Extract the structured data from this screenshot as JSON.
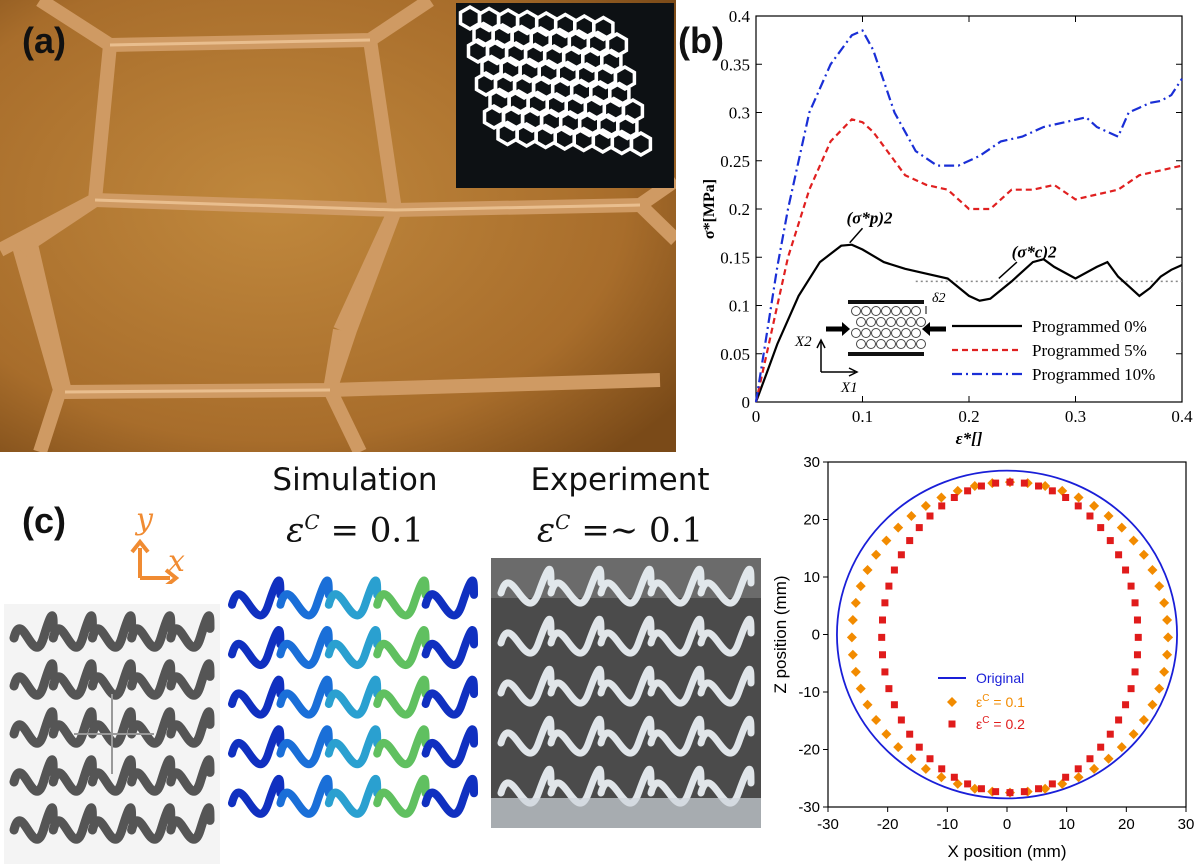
{
  "panel_a": {
    "label": "(a)",
    "colors": {
      "background": "#b57a33",
      "wall": "#d29a62",
      "inset_bg": "#0d1114"
    }
  },
  "panel_b": {
    "label": "(b)",
    "annotations": {
      "peak_label": "(σ*p)2",
      "plateau_label": "(σ*c)2",
      "delta": "δ2",
      "x2": "X2",
      "x1": "X1"
    }
  },
  "panel_c": {
    "label": "(c)",
    "axis_y": "y",
    "axis_x": "x",
    "sim_title": "Simulation",
    "exp_title": "Experiment",
    "sim_eq_sym": "ε",
    "sim_eq_sup": "C",
    "sim_eq_rest": " = 0.1",
    "exp_eq_sym": "ε",
    "exp_eq_sup": "C",
    "exp_eq_rest": " =~ 0.1"
  },
  "chart_data": [
    {
      "type": "line",
      "xlabel": "ε*[]",
      "ylabel": "σ*[MPa]",
      "xlim": [
        0,
        0.4
      ],
      "ylim": [
        0,
        0.4
      ],
      "xticks": [
        "0",
        "0.1",
        "0.2",
        "0.3",
        "0.4"
      ],
      "yticks": [
        "0",
        "0.05",
        "0.1",
        "0.15",
        "0.2",
        "0.25",
        "0.3",
        "0.35",
        "0.4"
      ],
      "grid": false,
      "legend": "bottom-right",
      "reference_line_y": 0.125,
      "series": [
        {
          "name": "Programmed 0%",
          "color": "#000000",
          "style": "solid",
          "x": [
            0,
            0.01,
            0.02,
            0.04,
            0.06,
            0.08,
            0.09,
            0.1,
            0.12,
            0.14,
            0.16,
            0.18,
            0.2,
            0.21,
            0.22,
            0.24,
            0.26,
            0.27,
            0.28,
            0.3,
            0.32,
            0.33,
            0.34,
            0.35,
            0.36,
            0.37,
            0.38,
            0.39,
            0.4
          ],
          "y": [
            0,
            0.03,
            0.06,
            0.11,
            0.145,
            0.162,
            0.163,
            0.158,
            0.145,
            0.138,
            0.133,
            0.128,
            0.11,
            0.105,
            0.107,
            0.125,
            0.145,
            0.148,
            0.14,
            0.128,
            0.14,
            0.145,
            0.13,
            0.12,
            0.11,
            0.118,
            0.13,
            0.137,
            0.142
          ]
        },
        {
          "name": "Programmed 5%",
          "color": "#e02020",
          "style": "dashed",
          "x": [
            0,
            0.01,
            0.02,
            0.03,
            0.05,
            0.07,
            0.09,
            0.1,
            0.11,
            0.12,
            0.14,
            0.16,
            0.18,
            0.2,
            0.22,
            0.24,
            0.26,
            0.28,
            0.3,
            0.32,
            0.34,
            0.36,
            0.38,
            0.4
          ],
          "y": [
            0,
            0.05,
            0.1,
            0.15,
            0.22,
            0.27,
            0.293,
            0.29,
            0.28,
            0.265,
            0.235,
            0.225,
            0.22,
            0.2,
            0.2,
            0.22,
            0.22,
            0.225,
            0.21,
            0.215,
            0.22,
            0.235,
            0.24,
            0.245
          ]
        },
        {
          "name": "Programmed 10%",
          "color": "#1a2fd6",
          "style": "dashdot",
          "x": [
            0,
            0.01,
            0.02,
            0.03,
            0.05,
            0.07,
            0.09,
            0.1,
            0.11,
            0.13,
            0.15,
            0.17,
            0.19,
            0.21,
            0.23,
            0.25,
            0.27,
            0.29,
            0.31,
            0.32,
            0.33,
            0.34,
            0.35,
            0.36,
            0.37,
            0.38,
            0.39,
            0.4
          ],
          "y": [
            0,
            0.07,
            0.14,
            0.2,
            0.3,
            0.35,
            0.38,
            0.385,
            0.365,
            0.3,
            0.26,
            0.245,
            0.245,
            0.255,
            0.27,
            0.275,
            0.285,
            0.29,
            0.295,
            0.285,
            0.28,
            0.275,
            0.3,
            0.305,
            0.31,
            0.312,
            0.318,
            0.335
          ]
        }
      ]
    },
    {
      "type": "scatter",
      "xlabel": "X position (mm)",
      "ylabel": "Z position (mm)",
      "xlim": [
        -30,
        30
      ],
      "ylim": [
        -30,
        30
      ],
      "xticks": [
        "-30",
        "-20",
        "-10",
        "0",
        "10",
        "20",
        "30"
      ],
      "yticks": [
        "-30",
        "-20",
        "-10",
        "0",
        "10",
        "20",
        "30"
      ],
      "grid": false,
      "legend": "center",
      "series": [
        {
          "name": "Original",
          "color": "#1a1fd8",
          "marker": "line",
          "shape": "circle",
          "cx": 0,
          "cy": 0,
          "rx": 28.5,
          "rz": 28.5
        },
        {
          "name": "ε",
          "sup": "C",
          "value_text": " = 0.1",
          "color": "#f28b00",
          "marker": "diamond",
          "shape": "ellipse",
          "cx": 0.5,
          "cy": -0.5,
          "rx": 26.5,
          "rz": 27.0,
          "points": 56
        },
        {
          "name": "ε",
          "sup": "C",
          "value_text": " = 0.2",
          "color": "#e01b1b",
          "marker": "square",
          "shape": "ellipse",
          "cx": 0.5,
          "cy": -0.5,
          "rx": 21.5,
          "rz": 27.0,
          "points": 56
        }
      ]
    }
  ]
}
